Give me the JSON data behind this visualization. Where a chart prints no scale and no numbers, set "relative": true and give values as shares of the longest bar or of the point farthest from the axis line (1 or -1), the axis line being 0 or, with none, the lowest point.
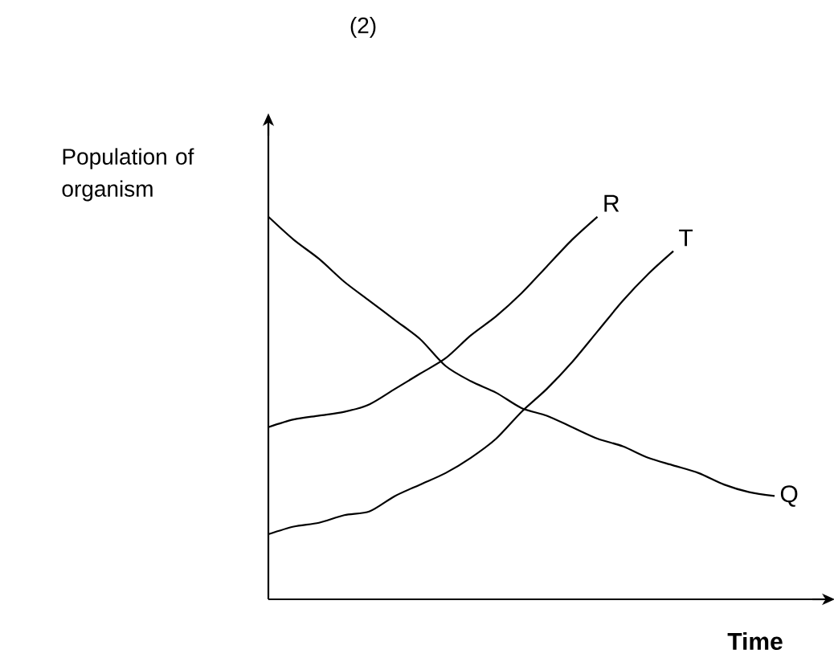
{
  "chart_data": {
    "type": "line",
    "title": "(2)",
    "xlabel": "Time",
    "ylabel": "Population of organism",
    "relative": true,
    "categories": [
      null,
      null,
      null,
      null,
      null,
      null,
      null,
      null,
      null,
      null,
      null,
      null,
      null,
      null,
      null,
      null,
      null,
      null,
      null,
      null,
      null
    ],
    "series": [
      {
        "name": "Q",
        "color": "#000000",
        "values": [
          1.0,
          0.94,
          0.89,
          0.83,
          0.78,
          0.73,
          0.68,
          0.61,
          0.57,
          0.54,
          0.5,
          0.48,
          0.45,
          0.42,
          0.4,
          0.37,
          0.35,
          0.33,
          0.3,
          0.28,
          0.27
        ]
      },
      {
        "name": "R",
        "color": "#000000",
        "values": [
          0.45,
          0.47,
          0.48,
          0.49,
          0.51,
          0.55,
          0.59,
          0.63,
          0.69,
          0.74,
          0.8,
          0.87,
          0.94,
          1.0,
          null,
          null,
          null,
          null,
          null,
          null,
          null
        ]
      },
      {
        "name": "T",
        "color": "#000000",
        "values": [
          0.17,
          0.19,
          0.2,
          0.22,
          0.23,
          0.27,
          0.3,
          0.33,
          0.37,
          0.42,
          0.49,
          0.55,
          0.62,
          0.7,
          0.78,
          0.85,
          0.91,
          null,
          null,
          null,
          null
        ]
      }
    ]
  }
}
